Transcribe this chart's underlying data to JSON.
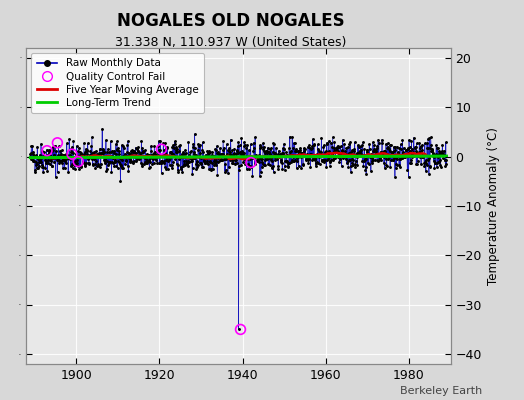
{
  "title": "NOGALES OLD NOGALES",
  "subtitle": "31.338 N, 110.937 W (United States)",
  "ylabel": "Temperature Anomaly (°C)",
  "xlabel_credit": "Berkeley Earth",
  "ylim": [
    -42,
    22
  ],
  "xlim": [
    1888,
    1990
  ],
  "yticks": [
    -40,
    -30,
    -20,
    -10,
    0,
    10,
    20
  ],
  "xticks": [
    1900,
    1920,
    1940,
    1960,
    1980
  ],
  "bg_color": "#d8d8d8",
  "plot_bg_color": "#e8e8e8",
  "raw_color": "#0000bb",
  "raw_marker_color": "#000000",
  "ma_color": "#dd0000",
  "trend_color": "#00cc00",
  "qc_color": "#ff00ff",
  "seed": 42,
  "start_year": 1889,
  "end_year": 1989,
  "noise_std": 1.5,
  "outlier_year": 1939,
  "outlier_value": -35,
  "qc_fail_positions": [
    [
      1893.0,
      1.2
    ],
    [
      1895.5,
      2.8
    ],
    [
      1899.0,
      0.5
    ],
    [
      1900.5,
      -1.0
    ],
    [
      1920.5,
      1.5
    ],
    [
      1942.0,
      -1.2
    ],
    [
      1939.5,
      -35
    ]
  ]
}
